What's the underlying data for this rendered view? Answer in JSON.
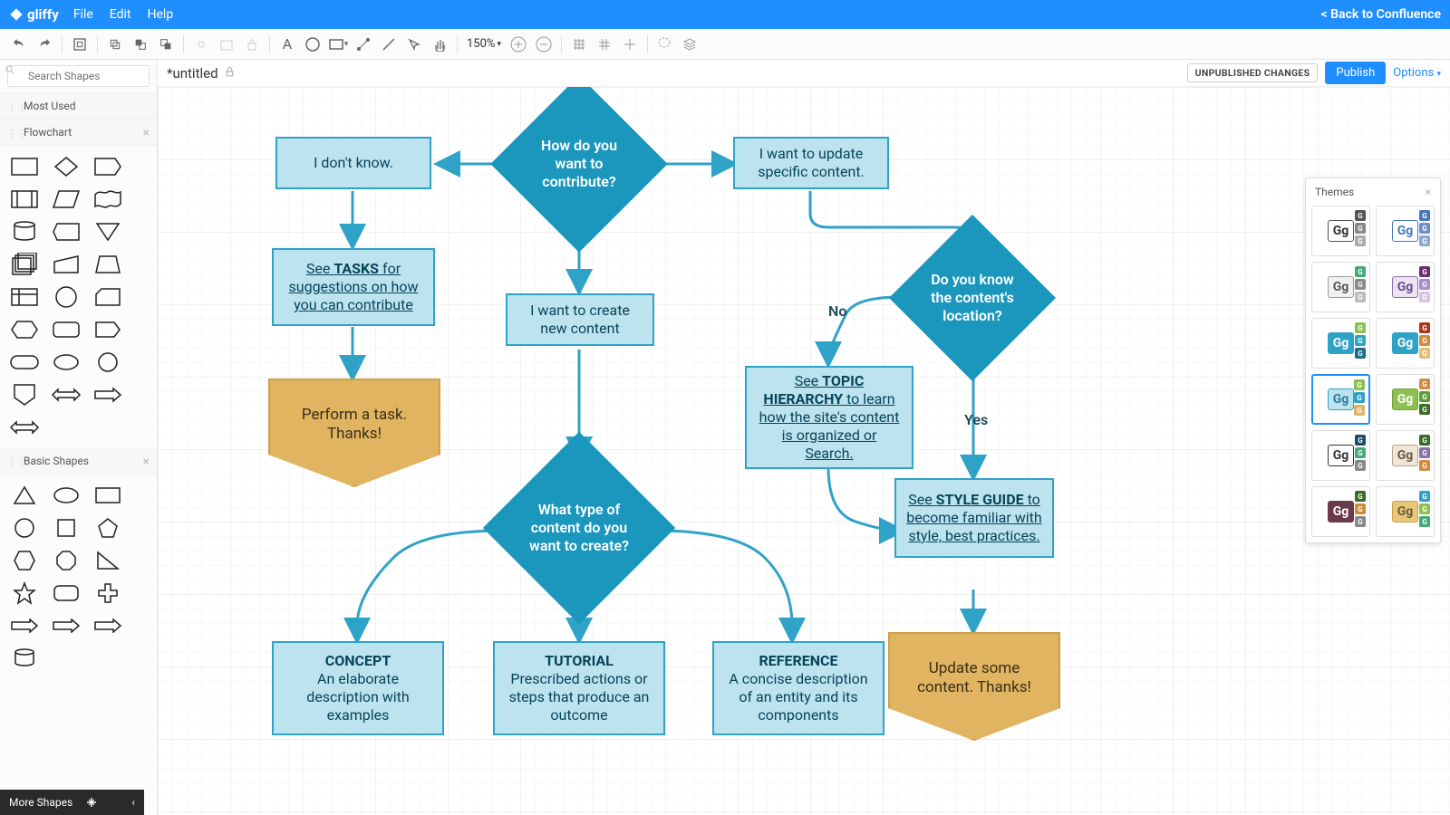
{
  "app": {
    "name": "gliffy",
    "back_link": "< Back to Confluence"
  },
  "menu": [
    "File",
    "Edit",
    "Help"
  ],
  "toolbar": {
    "zoom": "150%"
  },
  "sidebar": {
    "search_placeholder": "Search Shapes",
    "sections": {
      "most_used": "Most Used",
      "flowchart": "Flowchart",
      "basic": "Basic Shapes"
    },
    "more": "More Shapes"
  },
  "doc": {
    "title": "*untitled",
    "unpublished": "UNPUBLISHED CHANGES",
    "publish": "Publish",
    "options": "Options"
  },
  "themes_panel": {
    "title": "Themes"
  },
  "flow": {
    "colors": {
      "light_fill": "#bde3ee",
      "light_stroke": "#2fa2c7",
      "diamond_fill": "#1b96bd",
      "off_fill": "#e1b461",
      "off_stroke": "#caa04a",
      "edge": "#2fa2c7"
    },
    "nodes": {
      "q1": {
        "text": "How do you want to contribute?"
      },
      "left1": {
        "text": "I don't know."
      },
      "right1": {
        "text": "I want to update specific content."
      },
      "tasks": {
        "prefix": "See ",
        "bold": "TASKS",
        "rest": " for suggestions on how you can contribute"
      },
      "perform": {
        "text": "Perform a task. Thanks!"
      },
      "create": {
        "text": "I want to create new content"
      },
      "q2": {
        "text": "What type of content do you want to create?"
      },
      "concept": {
        "title": "CONCEPT",
        "body": "An elaborate description with examples"
      },
      "tutorial": {
        "title": "TUTORIAL",
        "body": "Prescribed actions or steps that produce an outcome"
      },
      "reference": {
        "title": "REFERENCE",
        "body": "A concise description of an entity and its components"
      },
      "q3": {
        "text": "Do you know the content's location?"
      },
      "topic": {
        "prefix": "See ",
        "bold": "TOPIC HIERARCHY",
        "rest": " to learn how the site's content is organized or Search."
      },
      "style": {
        "prefix": "See ",
        "bold": "STYLE GUIDE",
        "rest": " to become familiar with style, best practices."
      },
      "update": {
        "text": "Update some content. Thanks!"
      }
    },
    "labels": {
      "no": "No",
      "yes": "Yes"
    }
  },
  "themes": [
    {
      "gg_bg": "#fff",
      "gg_border": "#555",
      "gg_color": "#333",
      "minis": [
        "#555",
        "#888",
        "#aaa"
      ]
    },
    {
      "gg_bg": "#fff",
      "gg_border": "#4878b8",
      "gg_color": "#4878b8",
      "minis": [
        "#4878b8",
        "#6a8fc7",
        "#8fa8d0"
      ]
    },
    {
      "gg_bg": "#f1f1f1",
      "gg_border": "#999",
      "gg_color": "#555",
      "minis": [
        "#4a7",
        "#888",
        "#bbb"
      ]
    },
    {
      "gg_bg": "#ede3f3",
      "gg_border": "#8b6fa8",
      "gg_color": "#6b4a8b",
      "minis": [
        "#6b2d73",
        "#a98bc7",
        "#d5c4e3"
      ]
    },
    {
      "gg_bg": "#2fa2c7",
      "gg_border": "#2fa2c7",
      "gg_color": "#fff",
      "minis": [
        "#8cc152",
        "#2fa2c7",
        "#1b6d88"
      ]
    },
    {
      "gg_bg": "#2fa2c7",
      "gg_border": "#2fa2c7",
      "gg_color": "#fff",
      "minis": [
        "#a3381f",
        "#d18a3f",
        "#e3c07a"
      ]
    },
    {
      "gg_bg": "#bde3ee",
      "gg_border": "#2fa2c7",
      "gg_color": "#2a7d9a",
      "minis": [
        "#8cc152",
        "#2fa2c7",
        "#e1b461"
      ],
      "selected": true
    },
    {
      "gg_bg": "#8cc152",
      "gg_border": "#6da338",
      "gg_color": "#fff",
      "minis": [
        "#d18a3f",
        "#5a9e3a",
        "#3a6b28"
      ]
    },
    {
      "gg_bg": "#fff",
      "gg_border": "#333",
      "gg_color": "#333",
      "minis": [
        "#1b4d6b",
        "#4a7",
        "#888"
      ]
    },
    {
      "gg_bg": "#ede6d9",
      "gg_border": "#b8a885",
      "gg_color": "#6b5a3a",
      "minis": [
        "#3a6b28",
        "#8b6fa8",
        "#d18a3f"
      ]
    },
    {
      "gg_bg": "#6b3a4a",
      "gg_border": "#6b3a4a",
      "gg_color": "#fff",
      "minis": [
        "#3a6b28",
        "#d18a3f",
        "#888"
      ]
    },
    {
      "gg_bg": "#e8c878",
      "gg_border": "#caa04a",
      "gg_color": "#6b5a3a",
      "minis": [
        "#2fa2c7",
        "#8cc152",
        "#4a7"
      ]
    }
  ]
}
